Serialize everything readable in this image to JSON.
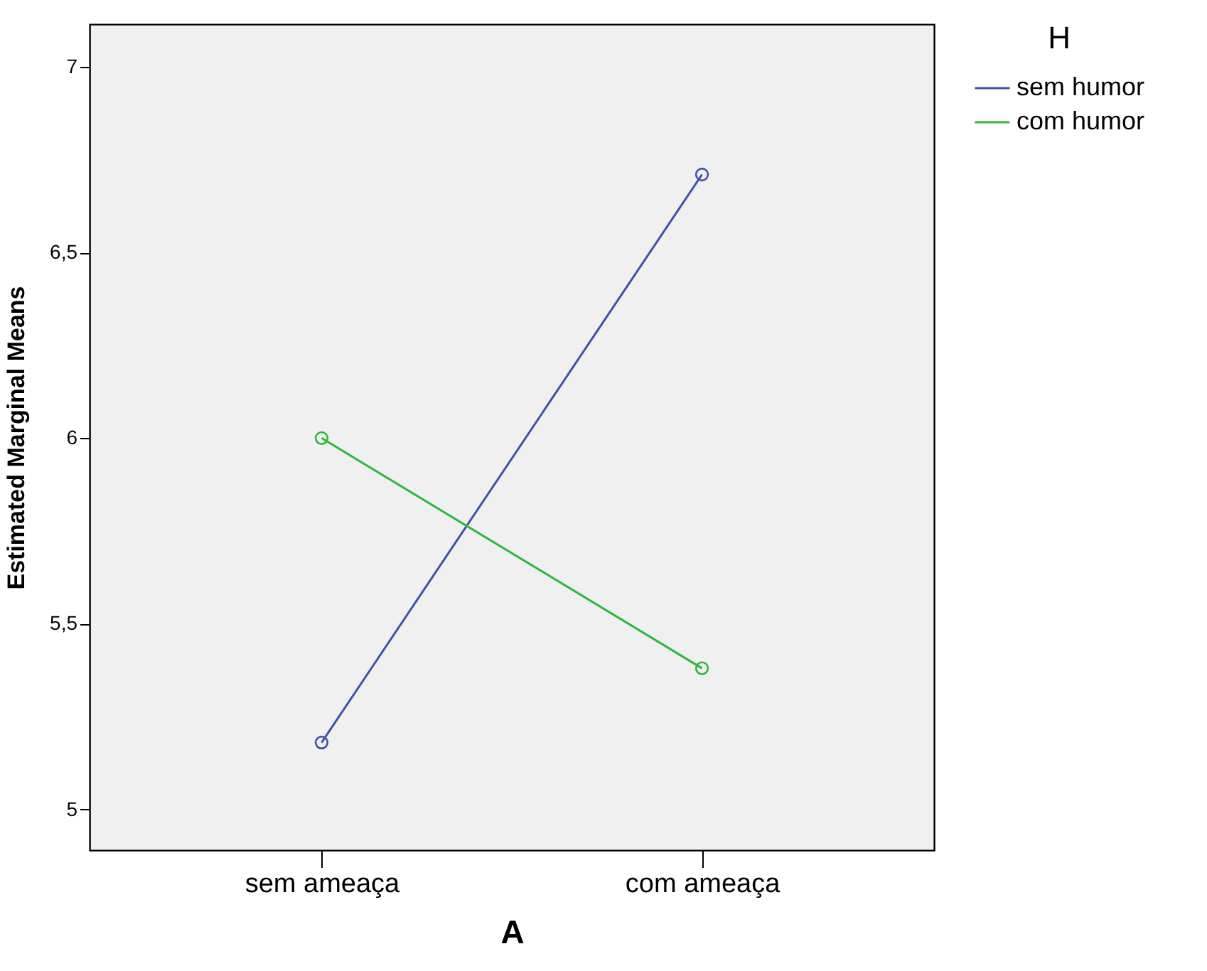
{
  "chart_data": {
    "type": "line",
    "xlabel": "A",
    "ylabel": "Estimated Marginal Means",
    "legend_title": "H",
    "categories": [
      "sem ameaça",
      "com ameaça"
    ],
    "series": [
      {
        "name": "sem humor",
        "color": "#3f51a8",
        "values": [
          5.18,
          6.71
        ]
      },
      {
        "name": "com humor",
        "color": "#2db83d",
        "values": [
          6.0,
          5.38
        ]
      }
    ],
    "ylim": [
      4.89,
      7.115
    ],
    "yticks": [
      5,
      {
        "value": 5.5,
        "label": "5,5"
      },
      6,
      {
        "value": 6.5,
        "label": "6,5"
      },
      7
    ],
    "grid": false,
    "legend": "top right",
    "marker": "circle"
  }
}
